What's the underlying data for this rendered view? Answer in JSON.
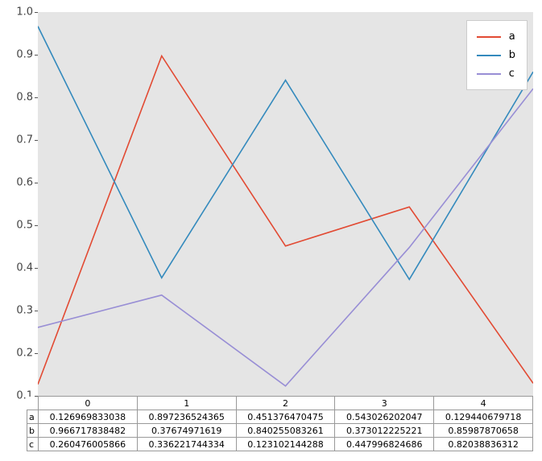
{
  "chart_data": {
    "type": "line",
    "title": "",
    "xlabel": "",
    "ylabel": "",
    "x": [
      0,
      1,
      2,
      3,
      4
    ],
    "categories": [
      "0",
      "1",
      "2",
      "3",
      "4"
    ],
    "series": [
      {
        "name": "a",
        "color": "#E24A33",
        "values": [
          0.126969833038,
          0.897236524365,
          0.451376470475,
          0.543026202047,
          0.129440679718
        ]
      },
      {
        "name": "b",
        "color": "#348ABD",
        "values": [
          0.966717838482,
          0.37674971619,
          0.840255083261,
          0.373012225221,
          0.85987870658
        ]
      },
      {
        "name": "c",
        "color": "#988ED5",
        "values": [
          0.260476005866,
          0.336221744334,
          0.123102144288,
          0.447996824686,
          0.82038836312
        ]
      }
    ],
    "xlim": [
      0,
      4
    ],
    "ylim": [
      0.1,
      1.0
    ],
    "y_ticks": [
      "1.0",
      "0.9",
      "0.8",
      "0.7",
      "0.6",
      "0.5",
      "0.4",
      "0.3",
      "0.2",
      "0.1"
    ],
    "grid": false,
    "legend_position": "upper right",
    "plot_background": "#E5E5E5",
    "table": {
      "row_labels": [
        "a",
        "b",
        "c"
      ],
      "col_labels": [
        "0",
        "1",
        "2",
        "3",
        "4"
      ],
      "values_text": [
        [
          "0.126969833038",
          "0.897236524365",
          "0.451376470475",
          "0.543026202047",
          "0.129440679718"
        ],
        [
          "0.966717838482",
          "0.37674971619",
          "0.840255083261",
          "0.373012225221",
          "0.85987870658"
        ],
        [
          "0.260476005866",
          "0.336221744334",
          "0.123102144288",
          "0.447996824686",
          "0.82038836312"
        ]
      ]
    }
  }
}
